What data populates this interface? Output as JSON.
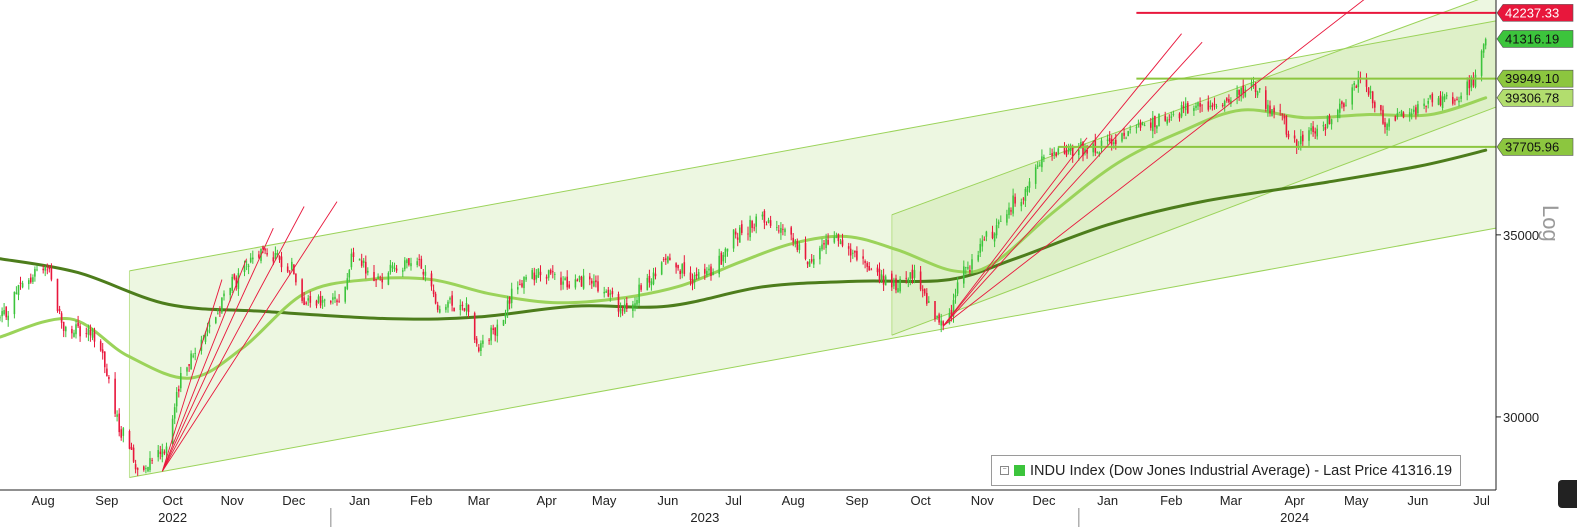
{
  "chart_data": {
    "type": "candlestick",
    "title": "",
    "xlabel": "",
    "ylabel": "",
    "scale_label": "Log",
    "y_scale": "log",
    "ylim": [
      28200,
      42700
    ],
    "xlim": [
      "2022-07-25",
      "2024-07-22"
    ],
    "y_ticks": [
      30000,
      35000
    ],
    "x_months": [
      {
        "label": "Aug",
        "date": "2022-08-15"
      },
      {
        "label": "Sep",
        "date": "2022-09-15"
      },
      {
        "label": "Oct",
        "date": "2022-10-17"
      },
      {
        "label": "Nov",
        "date": "2022-11-15"
      },
      {
        "label": "Dec",
        "date": "2022-12-15"
      },
      {
        "label": "Jan",
        "date": "2023-01-16"
      },
      {
        "label": "Feb",
        "date": "2023-02-15"
      },
      {
        "label": "Mar",
        "date": "2023-03-15"
      },
      {
        "label": "Apr",
        "date": "2023-04-17"
      },
      {
        "label": "May",
        "date": "2023-05-15"
      },
      {
        "label": "Jun",
        "date": "2023-06-15"
      },
      {
        "label": "Jul",
        "date": "2023-07-17"
      },
      {
        "label": "Aug",
        "date": "2023-08-15"
      },
      {
        "label": "Sep",
        "date": "2023-09-15"
      },
      {
        "label": "Oct",
        "date": "2023-10-16"
      },
      {
        "label": "Nov",
        "date": "2023-11-15"
      },
      {
        "label": "Dec",
        "date": "2023-12-15"
      },
      {
        "label": "Jan",
        "date": "2024-01-15"
      },
      {
        "label": "Feb",
        "date": "2024-02-15"
      },
      {
        "label": "Mar",
        "date": "2024-03-15"
      },
      {
        "label": "Apr",
        "date": "2024-04-15"
      },
      {
        "label": "May",
        "date": "2024-05-15"
      },
      {
        "label": "Jun",
        "date": "2024-06-14"
      },
      {
        "label": "Jul",
        "date": "2024-07-15"
      }
    ],
    "x_years": [
      {
        "label": "2022",
        "date": "2022-10-17"
      },
      {
        "label": "2023",
        "date": "2023-07-03"
      },
      {
        "label": "2024",
        "date": "2024-04-15"
      }
    ],
    "year_dividers": [
      "2023-01-02",
      "2024-01-01"
    ],
    "legend": {
      "text": "INDU Index (Dow Jones Industrial Average) - Last Price 41316.19",
      "position": "bottom-right",
      "swatch_color": "#3cc43c"
    },
    "price_tags": [
      {
        "label": "42237.33",
        "value": 42237.33,
        "bg": "#e8173c",
        "fg": "#ffffff"
      },
      {
        "label": "41316.19",
        "value": 41316.19,
        "bg": "#3cc43c",
        "fg": "#111111"
      },
      {
        "label": "39949.10",
        "value": 39949.1,
        "bg": "#8cc63f",
        "fg": "#111111"
      },
      {
        "label": "39306.78",
        "value": 39306.78,
        "bg": "#b2dd6e",
        "fg": "#111111"
      },
      {
        "label": "37705.96",
        "value": 37705.96,
        "bg": "#8cc63f",
        "fg": "#111111"
      }
    ],
    "horizontal_lines": [
      {
        "value": 42237.33,
        "start": "2024-01-29",
        "color": "#e8173c"
      },
      {
        "value": 39949.1,
        "start": "2024-01-29",
        "color": "#8cc63f"
      },
      {
        "value": 37705.96,
        "start": "2023-12-22",
        "color": "#8cc63f"
      }
    ],
    "channels": [
      {
        "name": "",
        "lower": [
          [
            "2022-09-26",
            28500
          ],
          [
            "2024-07-22",
            35200
          ]
        ],
        "upper": [
          [
            "2022-09-26",
            33950
          ],
          [
            "2024-07-22",
            41950
          ]
        ],
        "color": "#9bd35a"
      },
      {
        "name": "",
        "lower": [
          [
            "2023-10-02",
            32150
          ],
          [
            "2024-07-22",
            39000
          ]
        ],
        "upper": [
          [
            "2023-10-02",
            35600
          ],
          [
            "2024-07-22",
            42950
          ]
        ],
        "color": "#9bd35a"
      }
    ],
    "fan_lines": [
      {
        "from": [
          "2022-10-12",
          28650
        ],
        "to": [
          "2022-11-10",
          33700
        ],
        "color": "#e8173c"
      },
      {
        "from": [
          "2022-10-12",
          28650
        ],
        "to": [
          "2022-11-22",
          34300
        ],
        "color": "#e8173c"
      },
      {
        "from": [
          "2022-10-12",
          28650
        ],
        "to": [
          "2022-12-05",
          35200
        ],
        "color": "#e8173c"
      },
      {
        "from": [
          "2022-10-12",
          28650
        ],
        "to": [
          "2022-12-20",
          35850
        ],
        "color": "#e8173c"
      },
      {
        "from": [
          "2022-10-12",
          28650
        ],
        "to": [
          "2023-01-05",
          36000
        ],
        "color": "#e8173c"
      },
      {
        "from": [
          "2023-10-27",
          32400
        ],
        "to": [
          "2024-01-05",
          38000
        ],
        "color": "#e8173c"
      },
      {
        "from": [
          "2023-10-27",
          32400
        ],
        "to": [
          "2024-02-20",
          41500
        ],
        "color": "#e8173c"
      },
      {
        "from": [
          "2023-10-27",
          32400
        ],
        "to": [
          "2024-03-01",
          41200
        ],
        "color": "#e8173c"
      },
      {
        "from": [
          "2023-10-27",
          32400
        ],
        "to": [
          "2024-05-22",
          42900
        ],
        "color": "#e8173c"
      }
    ],
    "series": [
      {
        "name": "",
        "kind": "moving-average-long",
        "color": "#4d7d1c",
        "width": 3,
        "points": [
          [
            "2022-07-25",
            34300
          ],
          [
            "2022-09-01",
            33900
          ],
          [
            "2022-10-15",
            33000
          ],
          [
            "2022-12-01",
            32800
          ],
          [
            "2023-02-01",
            32600
          ],
          [
            "2023-03-15",
            32650
          ],
          [
            "2023-05-01",
            32950
          ],
          [
            "2023-06-15",
            32950
          ],
          [
            "2023-08-01",
            33500
          ],
          [
            "2023-09-15",
            33650
          ],
          [
            "2023-10-30",
            33700
          ],
          [
            "2023-12-01",
            34300
          ],
          [
            "2024-01-15",
            35300
          ],
          [
            "2024-03-01",
            36000
          ],
          [
            "2024-05-01",
            36600
          ],
          [
            "2024-06-15",
            37100
          ],
          [
            "2024-07-17",
            37600
          ]
        ]
      },
      {
        "name": "",
        "kind": "moving-average-short",
        "color": "#9bd35a",
        "width": 3,
        "points": [
          [
            "2022-07-25",
            32100
          ],
          [
            "2022-08-28",
            32600
          ],
          [
            "2022-09-25",
            31600
          ],
          [
            "2022-10-25",
            31000
          ],
          [
            "2022-11-20",
            31800
          ],
          [
            "2022-12-20",
            33300
          ],
          [
            "2023-01-20",
            33700
          ],
          [
            "2023-02-20",
            33700
          ],
          [
            "2023-03-20",
            33300
          ],
          [
            "2023-04-20",
            33050
          ],
          [
            "2023-05-20",
            33150
          ],
          [
            "2023-06-20",
            33500
          ],
          [
            "2023-07-20",
            34200
          ],
          [
            "2023-08-15",
            34750
          ],
          [
            "2023-09-10",
            34950
          ],
          [
            "2023-10-05",
            34550
          ],
          [
            "2023-11-01",
            33950
          ],
          [
            "2023-11-20",
            34150
          ],
          [
            "2023-12-20",
            35700
          ],
          [
            "2024-01-20",
            37200
          ],
          [
            "2024-02-20",
            38200
          ],
          [
            "2024-03-20",
            38900
          ],
          [
            "2024-04-20",
            38650
          ],
          [
            "2024-05-20",
            38750
          ],
          [
            "2024-06-20",
            38750
          ],
          [
            "2024-07-17",
            39306.78
          ]
        ]
      },
      {
        "name": "INDU Index (Dow Jones Industrial Average)",
        "kind": "price",
        "color_up": "#3cc43c",
        "color_down": "#e8173c",
        "points": [
          [
            "2022-07-25",
            32600
          ],
          [
            "2022-08-05",
            33500
          ],
          [
            "2022-08-16",
            34150
          ],
          [
            "2022-08-26",
            32300
          ],
          [
            "2022-09-09",
            32150
          ],
          [
            "2022-09-23",
            29600
          ],
          [
            "2022-09-30",
            28750
          ],
          [
            "2022-10-12",
            29200
          ],
          [
            "2022-10-25",
            31500
          ],
          [
            "2022-11-04",
            32400
          ],
          [
            "2022-11-15",
            33600
          ],
          [
            "2022-11-30",
            34500
          ],
          [
            "2022-12-13",
            34100
          ],
          [
            "2022-12-22",
            33000
          ],
          [
            "2023-01-05",
            33100
          ],
          [
            "2023-01-13",
            34300
          ],
          [
            "2023-01-25",
            33700
          ],
          [
            "2023-02-02",
            34100
          ],
          [
            "2023-02-14",
            34100
          ],
          [
            "2023-02-24",
            33000
          ],
          [
            "2023-03-08",
            33000
          ],
          [
            "2023-03-15",
            31900
          ],
          [
            "2023-03-24",
            32300
          ],
          [
            "2023-04-03",
            33600
          ],
          [
            "2023-04-14",
            33900
          ],
          [
            "2023-04-25",
            33600
          ],
          [
            "2023-05-05",
            33700
          ],
          [
            "2023-05-15",
            33300
          ],
          [
            "2023-05-25",
            32800
          ],
          [
            "2023-06-05",
            33600
          ],
          [
            "2023-06-16",
            34400
          ],
          [
            "2023-06-26",
            33700
          ],
          [
            "2023-07-06",
            33900
          ],
          [
            "2023-07-18",
            35000
          ],
          [
            "2023-07-31",
            35500
          ],
          [
            "2023-08-10",
            35200
          ],
          [
            "2023-08-22",
            34300
          ],
          [
            "2023-09-01",
            34800
          ],
          [
            "2023-09-12",
            34600
          ],
          [
            "2023-09-22",
            33900
          ],
          [
            "2023-10-02",
            33500
          ],
          [
            "2023-10-12",
            33800
          ],
          [
            "2023-10-27",
            32400
          ],
          [
            "2023-11-08",
            34100
          ],
          [
            "2023-11-20",
            35100
          ],
          [
            "2023-12-04",
            36200
          ],
          [
            "2023-12-14",
            37200
          ],
          [
            "2023-12-27",
            37600
          ],
          [
            "2024-01-10",
            37700
          ],
          [
            "2024-01-22",
            38000
          ],
          [
            "2024-02-05",
            38500
          ],
          [
            "2024-02-16",
            38800
          ],
          [
            "2024-02-28",
            39100
          ],
          [
            "2024-03-11",
            39000
          ],
          [
            "2024-03-25",
            39800
          ],
          [
            "2024-04-05",
            38900
          ],
          [
            "2024-04-16",
            37800
          ],
          [
            "2024-04-26",
            38300
          ],
          [
            "2024-05-08",
            39000
          ],
          [
            "2024-05-17",
            39900
          ],
          [
            "2024-05-30",
            38500
          ],
          [
            "2024-06-10",
            38800
          ],
          [
            "2024-06-20",
            39200
          ],
          [
            "2024-07-01",
            39300
          ],
          [
            "2024-07-10",
            39800
          ],
          [
            "2024-07-17",
            41316.19
          ]
        ]
      }
    ]
  }
}
